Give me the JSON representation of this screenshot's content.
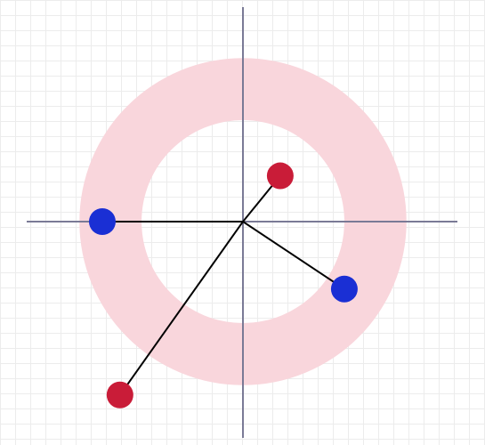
{
  "colors": {
    "background": "#ffffff",
    "grid": "#ececec",
    "axes": "#7a7a96",
    "annulus": "#f9d6dc",
    "segment": "#000000",
    "blue_point": "#1a2fd4",
    "red_point": "#c91c38"
  },
  "grid": true,
  "shapes": {
    "annulus": {
      "inner_radius": 1.55,
      "outer_radius": 2.5
    },
    "points": [
      {
        "name": "blue-point-1",
        "color": "blue",
        "x": -2.15,
        "y": 0.0
      },
      {
        "name": "blue-point-2",
        "color": "blue",
        "x": 1.55,
        "y": -1.03
      },
      {
        "name": "red-point-1",
        "color": "red",
        "x": 0.57,
        "y": 0.7
      },
      {
        "name": "red-point-2",
        "color": "red",
        "x": -1.88,
        "y": -2.65
      }
    ]
  }
}
